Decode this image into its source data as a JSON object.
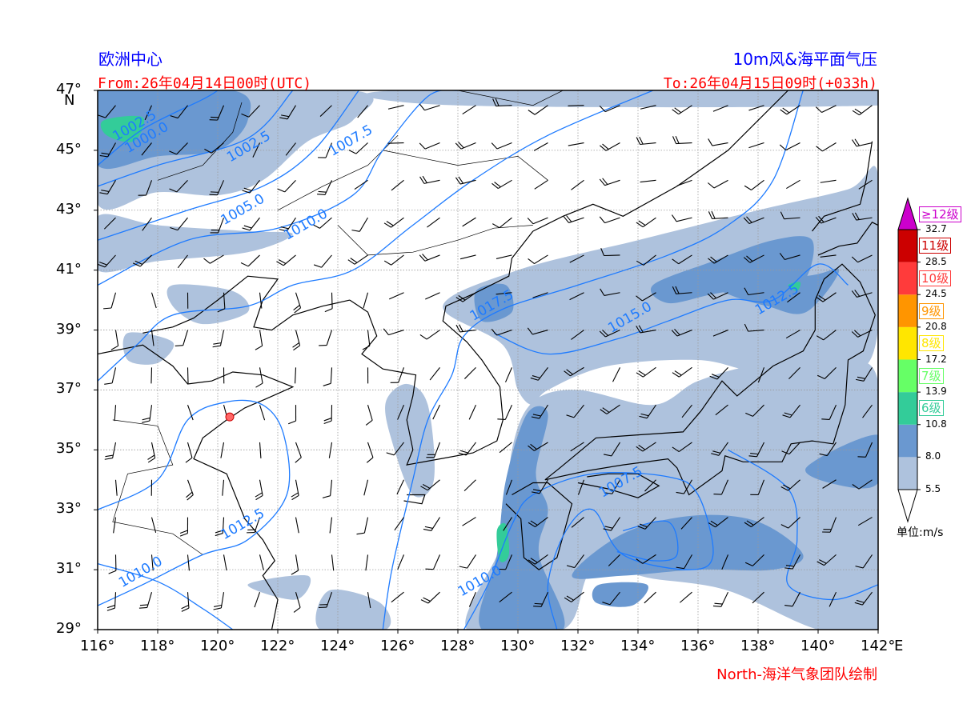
{
  "header": {
    "source": "欧洲中心",
    "product": "10m风&海平面气压",
    "from": "From:26年04月14日00时(UTC)",
    "to": "To:26年04月15日09时(+033h)"
  },
  "footer": {
    "credit": "North-海洋气象团队绘制"
  },
  "map": {
    "lon_range": [
      116,
      142
    ],
    "lat_range": [
      29,
      47
    ],
    "lon_ticks": [
      "116°",
      "118°",
      "120°",
      "122°",
      "124°",
      "126°",
      "128°",
      "130°",
      "132°",
      "134°",
      "136°",
      "138°",
      "140°",
      "142°"
    ],
    "lon_unit": "E",
    "lat_ticks": [
      "47°",
      "45°",
      "43°",
      "41°",
      "39°",
      "37°",
      "35°",
      "33°",
      "31°",
      "29°"
    ],
    "lat_unit": "N",
    "grid": true,
    "isobar_color": "#1e7bff",
    "isobar_labels": [
      {
        "text": "1002.5",
        "lon": 117.3,
        "lat": 45.7
      },
      {
        "text": "1000.0",
        "lon": 117.7,
        "lat": 45.3
      },
      {
        "text": "1002.5",
        "lon": 121.1,
        "lat": 45.0
      },
      {
        "text": "1007.5",
        "lon": 124.5,
        "lat": 45.2
      },
      {
        "text": "1005.0",
        "lon": 120.9,
        "lat": 42.9
      },
      {
        "text": "1010.0",
        "lon": 123.0,
        "lat": 42.4
      },
      {
        "text": "1017.5",
        "lon": 129.2,
        "lat": 39.7
      },
      {
        "text": "1015.0",
        "lon": 133.8,
        "lat": 39.3
      },
      {
        "text": "1012.5",
        "lon": 138.7,
        "lat": 39.9
      },
      {
        "text": "1007.5",
        "lon": 133.5,
        "lat": 33.8
      },
      {
        "text": "1012.5",
        "lon": 120.9,
        "lat": 32.4
      },
      {
        "text": "1010.0",
        "lon": 117.5,
        "lat": 30.8
      },
      {
        "text": "1010.0",
        "lon": 128.8,
        "lat": 30.5
      }
    ],
    "marker": {
      "lon": 120.4,
      "lat": 36.1
    }
  },
  "colorbar": {
    "unit": "单位:m/s",
    "bins": [
      {
        "color": "#aec2dd",
        "from": 5.5,
        "to": 8.0
      },
      {
        "color": "#6a98d0",
        "from": 8.0,
        "to": 10.8
      },
      {
        "color": "#33cc99",
        "from": 10.8,
        "to": 13.9,
        "label": "6级"
      },
      {
        "color": "#66ff66",
        "from": 13.9,
        "to": 17.2,
        "label": "7级"
      },
      {
        "color": "#ffe600",
        "from": 17.2,
        "to": 20.8,
        "label": "8级"
      },
      {
        "color": "#ff9500",
        "from": 20.8,
        "to": 24.5,
        "label": "9级"
      },
      {
        "color": "#ff3b3b",
        "from": 24.5,
        "to": 28.5,
        "label": "10级"
      },
      {
        "color": "#cc0000",
        "from": 28.5,
        "to": 32.7,
        "label": "11级"
      }
    ],
    "top_label": "≥12级",
    "top_color": "#cc00cc",
    "ticks": [
      "5.5",
      "8.0",
      "10.8",
      "13.9",
      "17.2",
      "20.8",
      "24.5",
      "28.5",
      "32.7"
    ],
    "label_colors": [
      "#33cc99",
      "#66ff66",
      "#ffe600",
      "#ff9500",
      "#ff3b3b",
      "#cc0000"
    ]
  }
}
